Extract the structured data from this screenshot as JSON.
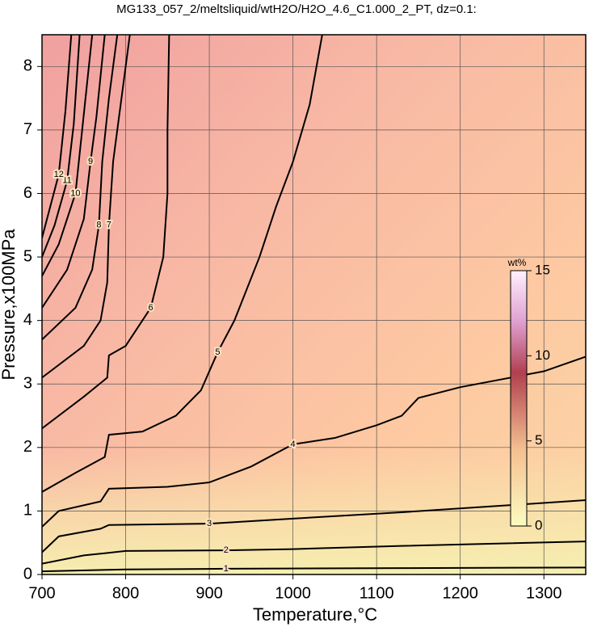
{
  "chart_data": {
    "type": "contour",
    "title": "MG133_057_2/meltsliquid/wtH2O/H2O_4.6_C1.000_2_PT, dz=0.1:",
    "xlabel": "Temperature,°C",
    "ylabel": "Pressure,x100MPa",
    "xlim": [
      700,
      1350
    ],
    "ylim": [
      0,
      8.5
    ],
    "xticks": [
      700,
      800,
      900,
      1000,
      1100,
      1200,
      1300
    ],
    "yticks": [
      0,
      1,
      2,
      3,
      4,
      5,
      6,
      7,
      8
    ],
    "grid": true,
    "colorbar": {
      "label": "wt%",
      "lim": [
        0,
        15
      ],
      "ticks": [
        0,
        5,
        10,
        15
      ]
    },
    "series": [
      {
        "level": 1,
        "x": [
          700,
          800,
          920,
          1130,
          1350
        ],
        "y": [
          0.05,
          0.08,
          0.09,
          0.1,
          0.11
        ]
      },
      {
        "level": 2,
        "x": [
          700,
          750,
          800,
          920,
          1000,
          1130,
          1350
        ],
        "y": [
          0.17,
          0.3,
          0.37,
          0.38,
          0.4,
          0.45,
          0.52
        ]
      },
      {
        "level": 3,
        "x": [
          700,
          720,
          770,
          780,
          900,
          1000,
          1130,
          1350
        ],
        "y": [
          0.35,
          0.6,
          0.72,
          0.78,
          0.8,
          0.88,
          0.98,
          1.17
        ]
      },
      {
        "level": 4,
        "x": [
          700,
          720,
          770,
          780,
          850,
          900,
          950,
          1000,
          1050,
          1100,
          1130,
          1150,
          1200,
          1300,
          1350
        ],
        "y": [
          0.75,
          1.0,
          1.15,
          1.35,
          1.38,
          1.45,
          1.7,
          2.05,
          2.15,
          2.35,
          2.5,
          2.78,
          2.95,
          3.2,
          3.43
        ]
      },
      {
        "level": 5,
        "x": [
          700,
          740,
          775,
          780,
          820,
          860,
          890,
          910,
          930,
          960,
          980,
          1000,
          1020,
          1035
        ],
        "y": [
          1.3,
          1.6,
          1.85,
          2.2,
          2.25,
          2.5,
          2.9,
          3.5,
          4.0,
          5.0,
          5.8,
          6.5,
          7.4,
          8.5
        ]
      },
      {
        "level": 6,
        "x": [
          700,
          750,
          778,
          780,
          800,
          830,
          845,
          850,
          850,
          852
        ],
        "y": [
          2.3,
          2.8,
          3.1,
          3.45,
          3.6,
          4.2,
          5.0,
          6.0,
          7.0,
          8.5
        ]
      },
      {
        "level": 7,
        "x": [
          700,
          750,
          770,
          778,
          780,
          785,
          795,
          805
        ],
        "y": [
          3.1,
          3.6,
          4.0,
          4.6,
          5.5,
          6.5,
          7.5,
          8.5
        ]
      },
      {
        "level": 8,
        "x": [
          700,
          740,
          760,
          768,
          772,
          780,
          790
        ],
        "y": [
          3.7,
          4.2,
          4.8,
          5.5,
          6.5,
          7.5,
          8.5
        ]
      },
      {
        "level": 9,
        "x": [
          700,
          730,
          750,
          758,
          765,
          775
        ],
        "y": [
          4.2,
          4.8,
          5.6,
          6.5,
          7.2,
          8.5
        ]
      },
      {
        "level": 10,
        "x": [
          700,
          720,
          740,
          748,
          760
        ],
        "y": [
          4.7,
          5.2,
          6.0,
          7.0,
          8.5
        ]
      },
      {
        "level": 11,
        "x": [
          700,
          715,
          730,
          738,
          745
        ],
        "y": [
          5.0,
          5.5,
          6.2,
          7.1,
          8.5
        ]
      },
      {
        "level": 12,
        "x": [
          700,
          710,
          720,
          728,
          735
        ],
        "y": [
          5.3,
          5.8,
          6.3,
          7.3,
          8.5
        ]
      }
    ]
  }
}
